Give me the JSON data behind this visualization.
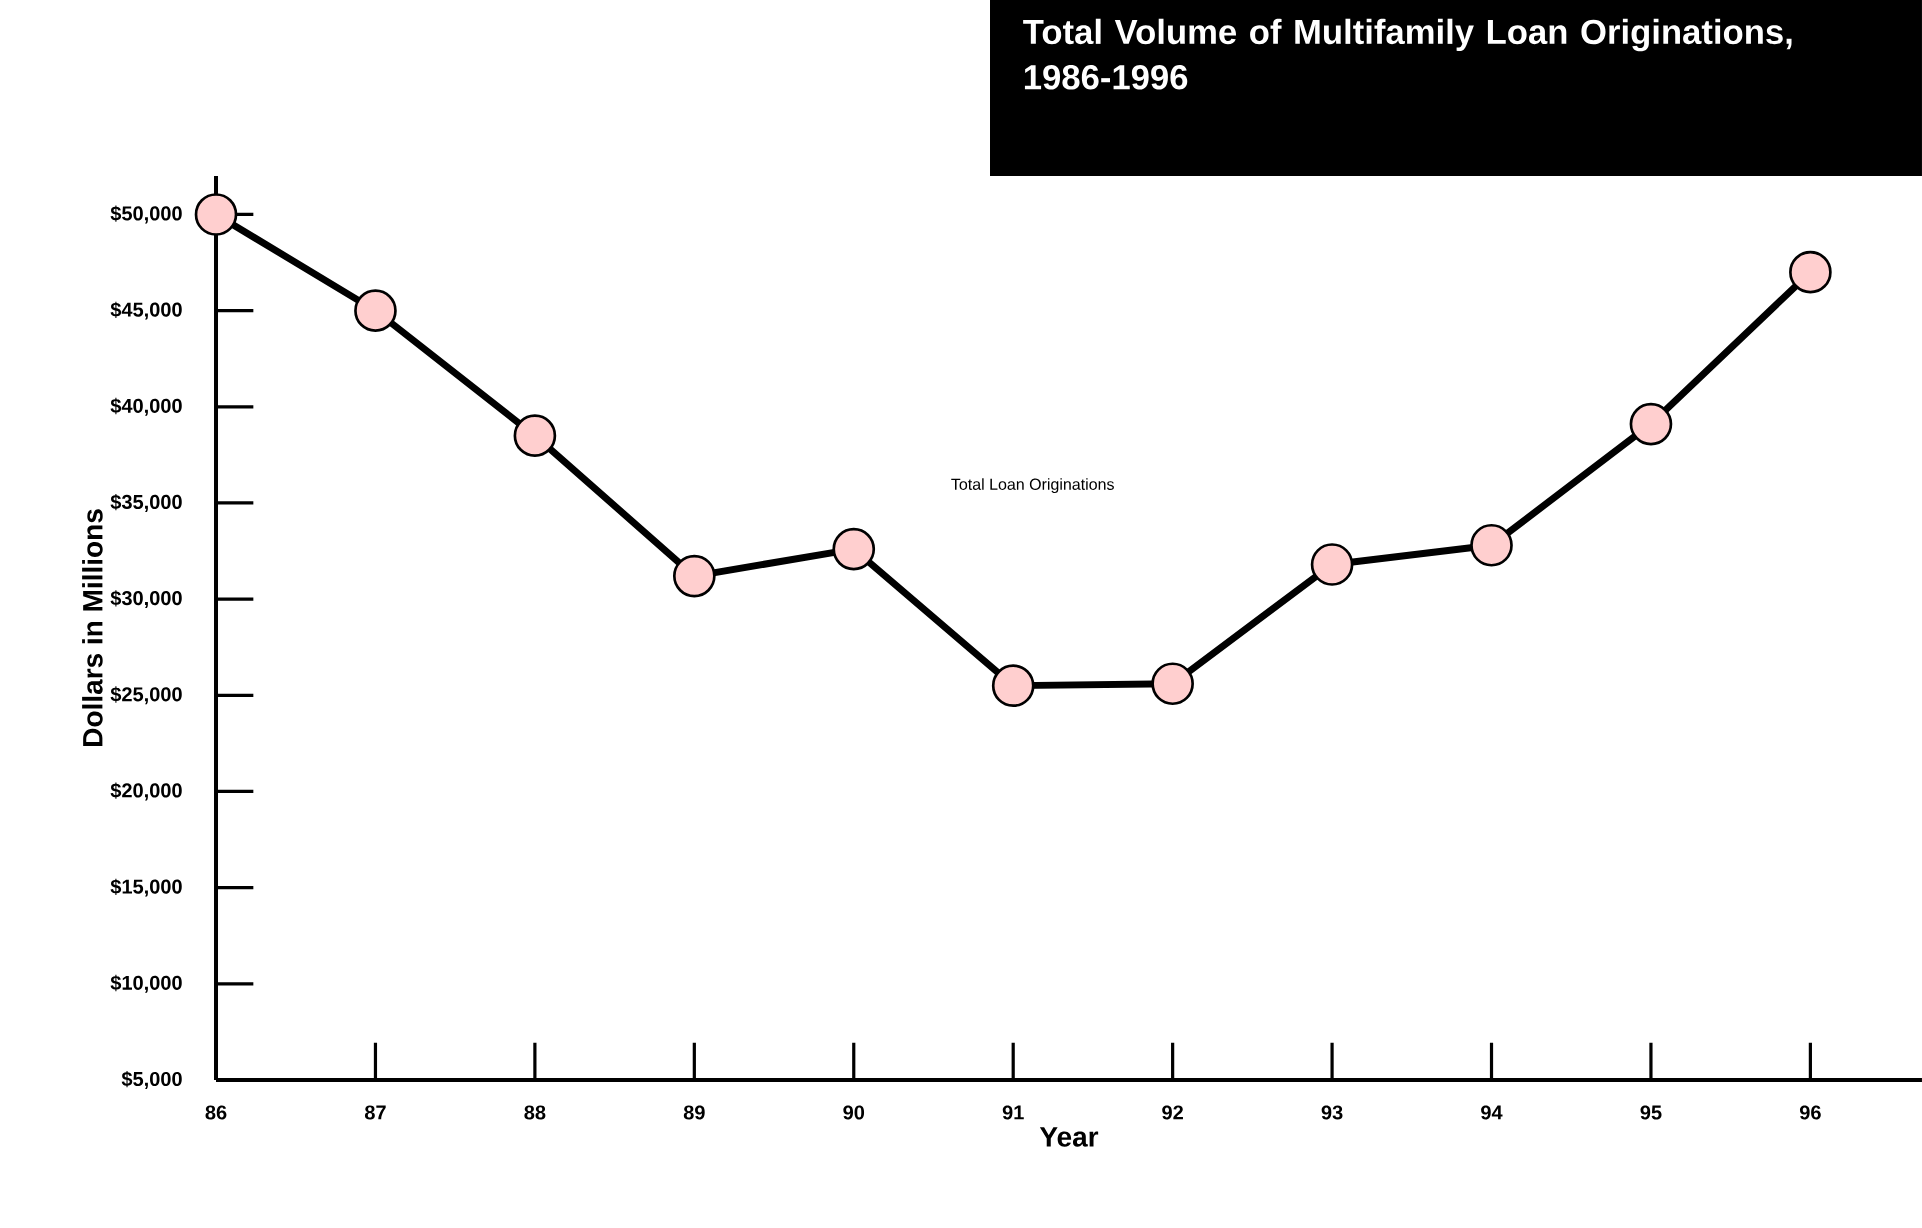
{
  "chart_data": {
    "type": "line",
    "title": "Total Volume of Multifamily Loan Originations, 1986-1996",
    "xlabel": "Year",
    "ylabel": "Dollars in Millions",
    "x": [
      86,
      87,
      88,
      89,
      90,
      91,
      92,
      93,
      94,
      95,
      96
    ],
    "series": [
      {
        "name": "Total Loan Originations",
        "color": "#000000",
        "values": [
          50000,
          45000,
          38500,
          31200,
          32600,
          25500,
          25600,
          31800,
          32800,
          39100,
          47000
        ]
      }
    ],
    "xlim": [
      86,
      96.7
    ],
    "xticks": [
      86,
      87,
      88,
      89,
      90,
      91,
      92,
      93,
      94,
      95,
      96
    ],
    "ylim": [
      5000,
      52000
    ],
    "yticks": [
      {
        "value": 5000,
        "label": "$5,000"
      },
      {
        "value": 10000,
        "label": "$10,000"
      },
      {
        "value": 15000,
        "label": "$15,000"
      },
      {
        "value": 20000,
        "label": "$20,000"
      },
      {
        "value": 25000,
        "label": "$25,000"
      },
      {
        "value": 30000,
        "label": "$30,000"
      },
      {
        "value": 35000,
        "label": "$35,000"
      },
      {
        "value": 40000,
        "label": "$40,000"
      },
      {
        "value": 45000,
        "label": "$45,000"
      },
      {
        "value": 50000,
        "label": "$50,000"
      }
    ],
    "marker": "circle",
    "line_style": "solid"
  }
}
